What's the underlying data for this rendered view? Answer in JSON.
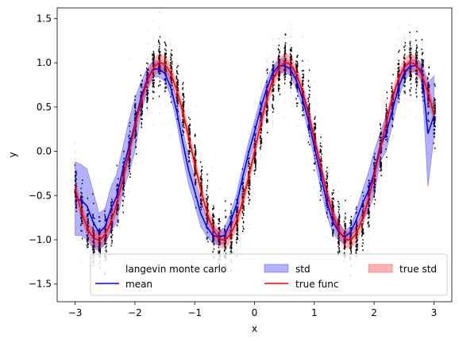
{
  "chart_data": {
    "type": "line",
    "title": "",
    "xlabel": "x",
    "ylabel": "y",
    "xlim": [
      -3.3,
      3.3
    ],
    "ylim": [
      -1.7,
      1.62
    ],
    "xticks": [
      -3,
      -2,
      -1,
      0,
      1,
      2,
      3
    ],
    "yticks": [
      -1.5,
      -1.0,
      -0.5,
      0.0,
      0.5,
      1.0,
      1.5
    ],
    "xtick_labels": [
      "−3",
      "−2",
      "−1",
      "0",
      "1",
      "2",
      "3"
    ],
    "ytick_labels": [
      "−1.5",
      "−1.0",
      "−0.5",
      "0.0",
      "0.5",
      "1.0",
      "1.5"
    ],
    "grid": false,
    "legend_location": "bottom-right",
    "legend_columns": 3,
    "true_func": {
      "description": "y = sin(3x)",
      "x_range": [
        -3,
        3
      ],
      "std": 0.1
    },
    "series": [
      {
        "name": "langevin monte carlo",
        "kind": "samples",
        "color": "#000000"
      },
      {
        "name": "mean",
        "kind": "line",
        "color": "#0000ff",
        "x": [
          -3.0,
          -2.9,
          -2.8,
          -2.7,
          -2.6,
          -2.5,
          -2.4,
          -2.3,
          -2.2,
          -2.1,
          -2.0,
          -1.9,
          -1.8,
          -1.7,
          -1.6,
          -1.5,
          -1.4,
          -1.3,
          -1.2,
          -1.1,
          -1.0,
          -0.9,
          -0.8,
          -0.7,
          -0.6,
          -0.5,
          -0.4,
          -0.3,
          -0.2,
          -0.1,
          0.0,
          0.1,
          0.2,
          0.3,
          0.4,
          0.5,
          0.6,
          0.7,
          0.8,
          0.9,
          1.0,
          1.1,
          1.2,
          1.3,
          1.4,
          1.5,
          1.6,
          1.7,
          1.8,
          1.9,
          2.0,
          2.1,
          2.2,
          2.3,
          2.4,
          2.5,
          2.6,
          2.7,
          2.8,
          2.9,
          3.0
        ],
        "y": [
          -0.55,
          -0.55,
          -0.62,
          -0.8,
          -0.92,
          -0.85,
          -0.65,
          -0.5,
          -0.2,
          0.05,
          0.3,
          0.6,
          0.8,
          0.93,
          0.93,
          0.88,
          0.72,
          0.45,
          0.1,
          -0.22,
          -0.45,
          -0.7,
          -0.85,
          -0.95,
          -0.97,
          -0.95,
          -0.8,
          -0.6,
          -0.3,
          -0.02,
          0.22,
          0.48,
          0.7,
          0.88,
          0.96,
          0.97,
          0.93,
          0.8,
          0.6,
          0.35,
          0.05,
          -0.25,
          -0.55,
          -0.78,
          -0.9,
          -0.97,
          -0.92,
          -0.78,
          -0.6,
          -0.45,
          -0.25,
          0.05,
          0.2,
          0.45,
          0.7,
          0.88,
          0.96,
          0.97,
          0.9,
          0.2,
          0.4
        ]
      },
      {
        "name": "std",
        "kind": "band",
        "color": "#0000ff",
        "opacity": 0.3,
        "upper": [
          -0.12,
          -0.15,
          -0.2,
          -0.45,
          -0.7,
          -0.65,
          -0.4,
          -0.25,
          0.05,
          0.35,
          0.6,
          0.78,
          0.93,
          1.02,
          1.02,
          0.97,
          0.82,
          0.58,
          0.25,
          -0.05,
          -0.3,
          -0.55,
          -0.74,
          -0.86,
          -0.9,
          -0.86,
          -0.7,
          -0.48,
          -0.18,
          0.1,
          0.34,
          0.6,
          0.8,
          0.95,
          1.04,
          1.05,
          1.0,
          0.9,
          0.7,
          0.48,
          0.18,
          -0.1,
          -0.4,
          -0.65,
          -0.8,
          -0.9,
          -0.85,
          -0.68,
          -0.45,
          -0.25,
          0.0,
          0.2,
          0.4,
          0.62,
          0.82,
          0.98,
          1.03,
          1.04,
          1.0,
          0.78,
          0.85
        ],
        "lower": [
          -0.95,
          -0.95,
          -1.0,
          -1.1,
          -1.12,
          -1.05,
          -0.9,
          -0.8,
          -0.45,
          -0.25,
          0.0,
          0.42,
          0.67,
          0.84,
          0.84,
          0.79,
          0.62,
          0.32,
          -0.05,
          -0.38,
          -0.6,
          -0.85,
          -0.96,
          -1.04,
          -1.06,
          -1.04,
          -0.9,
          -0.72,
          -0.42,
          -0.14,
          0.1,
          0.36,
          0.6,
          0.81,
          0.88,
          0.89,
          0.86,
          0.7,
          0.5,
          0.22,
          -0.08,
          -0.4,
          -0.7,
          -0.91,
          -1.0,
          -1.04,
          -1.0,
          -0.88,
          -0.78,
          -0.68,
          -0.5,
          -0.12,
          0.0,
          0.28,
          0.58,
          0.78,
          0.89,
          0.9,
          0.8,
          -0.4,
          0.15
        ]
      },
      {
        "name": "true func",
        "kind": "line",
        "color": "#ff0000"
      },
      {
        "name": "true std",
        "kind": "band",
        "color": "#ff0000",
        "opacity": 0.3
      }
    ]
  }
}
